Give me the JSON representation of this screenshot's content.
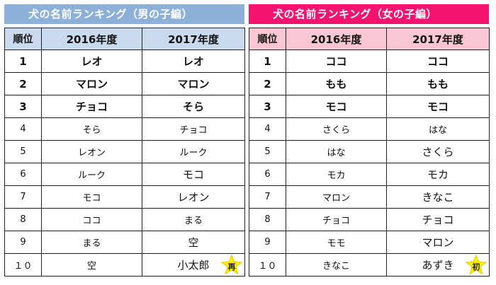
{
  "colors": {
    "boys_header": "#8DB0D8",
    "boys_head_row": "#C9D9EE",
    "girls_header": "#F4146F",
    "girls_head_row": "#F9C7D3",
    "star": "#FFF200",
    "star_stroke": "#E6C400"
  },
  "boys": {
    "title": "犬の名前ランキング（男の子編）",
    "headers": [
      "順位",
      "2016年度",
      "2017年度"
    ],
    "rows": [
      {
        "rank": "1",
        "y2016": "レオ",
        "y2017": "レオ"
      },
      {
        "rank": "2",
        "y2016": "マロン",
        "y2017": "マロン"
      },
      {
        "rank": "3",
        "y2016": "チョコ",
        "y2017": "そら"
      },
      {
        "rank": "4",
        "y2016": "そら",
        "y2017": "チョコ"
      },
      {
        "rank": "5",
        "y2016": "レオン",
        "y2017": "ルーク"
      },
      {
        "rank": "6",
        "y2016": "ルーク",
        "y2017": "モコ"
      },
      {
        "rank": "7",
        "y2016": "モコ",
        "y2017": "レオン"
      },
      {
        "rank": "8",
        "y2016": "ココ",
        "y2017": "まる"
      },
      {
        "rank": "9",
        "y2016": "まる",
        "y2017": "空"
      },
      {
        "rank": "１０",
        "y2016": "空",
        "y2017": "小太郎",
        "badge": "再"
      }
    ]
  },
  "girls": {
    "title": "犬の名前ランキング（女の子編）",
    "headers": [
      "順位",
      "2016年度",
      "2017年度"
    ],
    "rows": [
      {
        "rank": "1",
        "y2016": "ココ",
        "y2017": "ココ"
      },
      {
        "rank": "2",
        "y2016": "もも",
        "y2017": "もも"
      },
      {
        "rank": "3",
        "y2016": "モコ",
        "y2017": "モコ"
      },
      {
        "rank": "4",
        "y2016": "さくら",
        "y2017": "はな"
      },
      {
        "rank": "5",
        "y2016": "はな",
        "y2017": "さくら"
      },
      {
        "rank": "6",
        "y2016": "モカ",
        "y2017": "モカ"
      },
      {
        "rank": "7",
        "y2016": "マロン",
        "y2017": "きなこ"
      },
      {
        "rank": "8",
        "y2016": "チョコ",
        "y2017": "チョコ"
      },
      {
        "rank": "9",
        "y2016": "モモ",
        "y2017": "マロン"
      },
      {
        "rank": "１０",
        "y2016": "きなこ",
        "y2017": "あずき",
        "badge": "初"
      }
    ]
  }
}
